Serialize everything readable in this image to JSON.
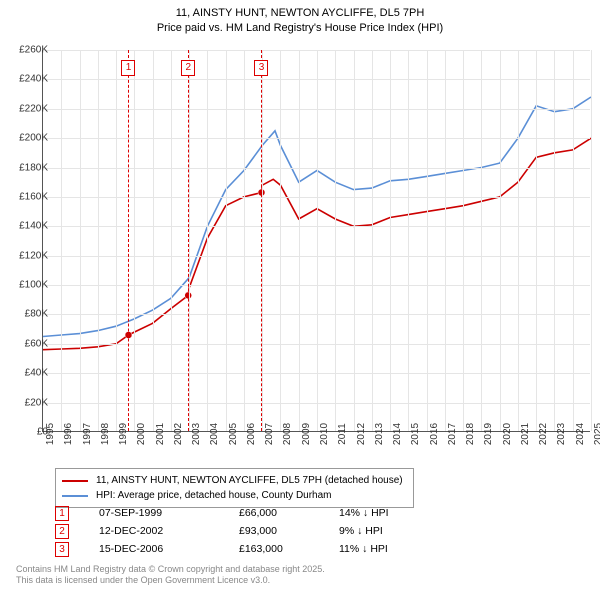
{
  "title": {
    "line1": "11, AINSTY HUNT, NEWTON AYCLIFFE, DL5 7PH",
    "line2": "Price paid vs. HM Land Registry's House Price Index (HPI)"
  },
  "chart": {
    "type": "line",
    "background_color": "#ffffff",
    "grid_color": "#e5e5e5",
    "axis_color": "#555555",
    "tick_fontsize": 10,
    "x": {
      "min": 1995,
      "max": 2025,
      "ticks": [
        1995,
        1996,
        1997,
        1998,
        1999,
        2000,
        2001,
        2002,
        2003,
        2004,
        2005,
        2006,
        2007,
        2008,
        2009,
        2010,
        2011,
        2012,
        2013,
        2014,
        2015,
        2016,
        2017,
        2018,
        2019,
        2020,
        2021,
        2022,
        2023,
        2024,
        2025
      ]
    },
    "y": {
      "min": 0,
      "max": 260000,
      "step": 20000,
      "fmt_prefix": "£",
      "fmt_suffix": "K",
      "fmt_divisor": 1000
    },
    "series": [
      {
        "id": "price_paid",
        "label": "11, AINSTY HUNT, NEWTON AYCLIFFE, DL5 7PH (detached house)",
        "color": "#cc0000",
        "line_width": 2,
        "data": [
          [
            1995,
            56000
          ],
          [
            1996,
            56500
          ],
          [
            1997,
            57000
          ],
          [
            1998,
            58000
          ],
          [
            1999,
            60000
          ],
          [
            1999.68,
            66000
          ],
          [
            2000,
            68000
          ],
          [
            2001,
            74000
          ],
          [
            2002,
            84000
          ],
          [
            2002.95,
            93000
          ],
          [
            2003,
            98000
          ],
          [
            2004,
            132000
          ],
          [
            2005,
            154000
          ],
          [
            2006,
            160000
          ],
          [
            2006.96,
            163000
          ],
          [
            2007,
            168000
          ],
          [
            2007.6,
            172000
          ],
          [
            2008,
            168000
          ],
          [
            2009,
            145000
          ],
          [
            2010,
            152000
          ],
          [
            2011,
            145000
          ],
          [
            2012,
            140000
          ],
          [
            2013,
            141000
          ],
          [
            2014,
            146000
          ],
          [
            2015,
            148000
          ],
          [
            2016,
            150000
          ],
          [
            2017,
            152000
          ],
          [
            2018,
            154000
          ],
          [
            2019,
            157000
          ],
          [
            2020,
            160000
          ],
          [
            2021,
            170000
          ],
          [
            2022,
            187000
          ],
          [
            2023,
            190000
          ],
          [
            2024,
            192000
          ],
          [
            2025,
            200000
          ]
        ]
      },
      {
        "id": "hpi",
        "label": "HPI: Average price, detached house, County Durham",
        "color": "#5b8fd6",
        "line_width": 1.6,
        "data": [
          [
            1995,
            65000
          ],
          [
            1996,
            66000
          ],
          [
            1997,
            67000
          ],
          [
            1998,
            69000
          ],
          [
            1999,
            72000
          ],
          [
            2000,
            77000
          ],
          [
            2001,
            83000
          ],
          [
            2002,
            91000
          ],
          [
            2003,
            105000
          ],
          [
            2004,
            140000
          ],
          [
            2005,
            165000
          ],
          [
            2006,
            178000
          ],
          [
            2007,
            195000
          ],
          [
            2007.7,
            205000
          ],
          [
            2008,
            195000
          ],
          [
            2009,
            170000
          ],
          [
            2010,
            178000
          ],
          [
            2011,
            170000
          ],
          [
            2012,
            165000
          ],
          [
            2013,
            166000
          ],
          [
            2014,
            171000
          ],
          [
            2015,
            172000
          ],
          [
            2016,
            174000
          ],
          [
            2017,
            176000
          ],
          [
            2018,
            178000
          ],
          [
            2019,
            180000
          ],
          [
            2020,
            183000
          ],
          [
            2021,
            200000
          ],
          [
            2022,
            222000
          ],
          [
            2023,
            218000
          ],
          [
            2024,
            220000
          ],
          [
            2025,
            228000
          ]
        ]
      }
    ],
    "markers": [
      {
        "x": 1999.68,
        "y": 66000
      },
      {
        "x": 2002.95,
        "y": 93000
      },
      {
        "x": 2006.96,
        "y": 163000
      }
    ],
    "event_lines": [
      {
        "n": "1",
        "x": 1999.68
      },
      {
        "n": "2",
        "x": 2002.95
      },
      {
        "n": "3",
        "x": 2006.96
      }
    ]
  },
  "legend": [
    {
      "color": "#cc0000",
      "label": "11, AINSTY HUNT, NEWTON AYCLIFFE, DL5 7PH (detached house)"
    },
    {
      "color": "#5b8fd6",
      "label": "HPI: Average price, detached house, County Durham"
    }
  ],
  "events_table": [
    {
      "n": "1",
      "date": "07-SEP-1999",
      "price": "£66,000",
      "delta": "14% ↓ HPI"
    },
    {
      "n": "2",
      "date": "12-DEC-2002",
      "price": "£93,000",
      "delta": "9% ↓ HPI"
    },
    {
      "n": "3",
      "date": "15-DEC-2006",
      "price": "£163,000",
      "delta": "11% ↓ HPI"
    }
  ],
  "footer": {
    "line1": "Contains HM Land Registry data © Crown copyright and database right 2025.",
    "line2": "This data is licensed under the Open Government Licence v3.0."
  }
}
